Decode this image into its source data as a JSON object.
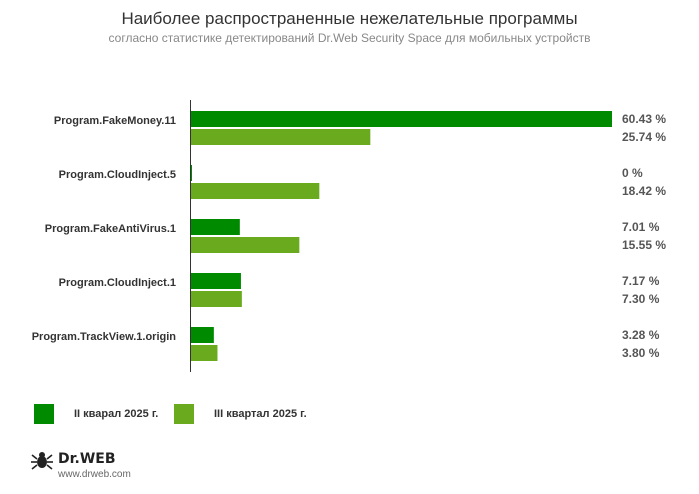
{
  "chart_data": {
    "type": "bar",
    "orientation": "horizontal",
    "title": "Наиболее распространенные нежелательные программы",
    "subtitle": "согласно статистике детектирований Dr.Web Security Space для мобильных устройств",
    "categories": [
      "Program.FakeMoney.11",
      "Program.CloudInject.5",
      "Program.FakeAntiVirus.1",
      "Program.CloudInject.1",
      "Program.TrackView.1.origin"
    ],
    "series": [
      {
        "name": "II кварал 2025 г.",
        "color": "#008a00",
        "values": [
          60.43,
          0,
          7.01,
          7.17,
          3.28
        ],
        "labels": [
          "60.43 %",
          "0 %",
          "7.01 %",
          "7.17 %",
          "3.28 %"
        ]
      },
      {
        "name": "III квартал 2025 г.",
        "color": "#6aaa1e",
        "values": [
          25.74,
          18.42,
          15.55,
          7.3,
          3.8
        ],
        "labels": [
          "25.74 %",
          "18.42 %",
          "15.55 %",
          "7.30 %",
          "3.80 %"
        ]
      }
    ],
    "xlim": [
      0,
      60.43
    ],
    "grid": false,
    "legend": "bottom-left"
  },
  "logo": {
    "brand": "Dr.WEB",
    "url": "www.drweb.com",
    "icon": "spider-icon"
  }
}
